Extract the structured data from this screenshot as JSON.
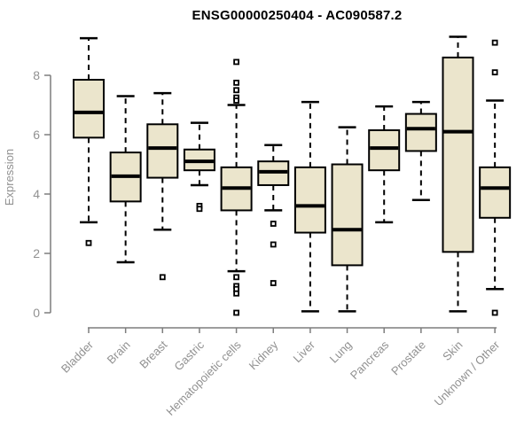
{
  "chart_data": {
    "type": "boxplot",
    "title": "ENSG00000250404 - AC090587.2",
    "ylabel": "Expression",
    "xlabel": "",
    "ylim": [
      0,
      9.5
    ],
    "yticks": [
      0,
      2,
      4,
      6,
      8
    ],
    "grid": false,
    "legend": "none",
    "colors": {
      "box_fill": "#EBE5CC",
      "box_stroke": "#000000",
      "median": "#000000",
      "whisker": "#000000",
      "axis": "#7d7d7d",
      "tick_label": "#919191",
      "axis_label": "#919191"
    },
    "categories": [
      "Bladder",
      "Brain",
      "Breast",
      "Gastric",
      "Hematopoietic cells",
      "Kidney",
      "Liver",
      "Lung",
      "Pancreas",
      "Prostate",
      "Skin",
      "Unknown / Other"
    ],
    "boxes": [
      {
        "name": "Bladder",
        "low": 3.05,
        "q1": 5.9,
        "median": 6.75,
        "q3": 7.85,
        "high": 9.25,
        "outliers": [
          2.35
        ]
      },
      {
        "name": "Brain",
        "low": 1.7,
        "q1": 3.75,
        "median": 4.6,
        "q3": 5.4,
        "high": 7.3,
        "outliers": []
      },
      {
        "name": "Breast",
        "low": 2.8,
        "q1": 4.55,
        "median": 5.55,
        "q3": 6.35,
        "high": 7.4,
        "outliers": [
          1.2
        ]
      },
      {
        "name": "Gastric",
        "low": 4.3,
        "q1": 4.8,
        "median": 5.1,
        "q3": 5.5,
        "high": 6.4,
        "outliers": [
          3.6,
          3.5
        ]
      },
      {
        "name": "Hematopoietic cells",
        "low": 1.4,
        "q1": 3.45,
        "median": 4.2,
        "q3": 4.9,
        "high": 7.0,
        "outliers": [
          8.45,
          7.75,
          7.5,
          7.25,
          7.15,
          1.2,
          0.9,
          0.8,
          0.65,
          0.0
        ]
      },
      {
        "name": "Kidney",
        "low": 3.45,
        "q1": 4.3,
        "median": 4.75,
        "q3": 5.1,
        "high": 5.65,
        "outliers": [
          3.0,
          2.3,
          1.0
        ]
      },
      {
        "name": "Liver",
        "low": 0.05,
        "q1": 2.7,
        "median": 3.6,
        "q3": 4.9,
        "high": 7.1,
        "outliers": []
      },
      {
        "name": "Lung",
        "low": 0.05,
        "q1": 1.6,
        "median": 2.8,
        "q3": 5.0,
        "high": 6.25,
        "outliers": []
      },
      {
        "name": "Pancreas",
        "low": 3.05,
        "q1": 4.8,
        "median": 5.55,
        "q3": 6.15,
        "high": 6.95,
        "outliers": []
      },
      {
        "name": "Prostate",
        "low": 3.8,
        "q1": 5.45,
        "median": 6.2,
        "q3": 6.7,
        "high": 7.1,
        "outliers": []
      },
      {
        "name": "Skin",
        "low": 0.05,
        "q1": 2.05,
        "median": 6.1,
        "q3": 8.6,
        "high": 9.3,
        "outliers": []
      },
      {
        "name": "Unknown / Other",
        "low": 0.8,
        "q1": 3.2,
        "median": 4.2,
        "q3": 4.9,
        "high": 7.15,
        "outliers": [
          9.1,
          8.1,
          0.0
        ]
      }
    ]
  }
}
